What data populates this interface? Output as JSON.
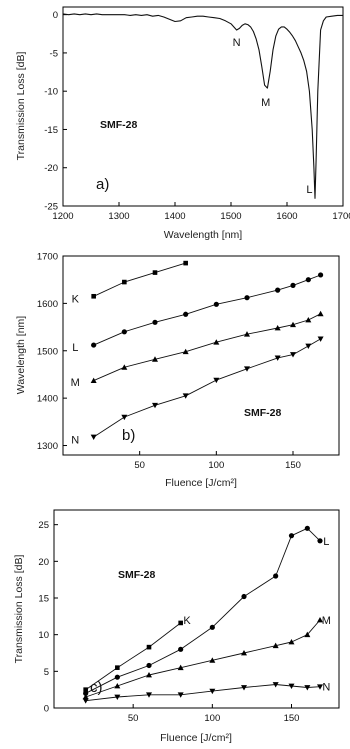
{
  "chart_data": [
    {
      "type": "line",
      "panel_label": "a)",
      "annotation": "SMF-28",
      "xlabel": "Wavelength [nm]",
      "ylabel": "Transmission Loss [dB]",
      "xlim": [
        1200,
        1700
      ],
      "ylim": [
        -25,
        1
      ],
      "xticks": [
        "1200",
        "1300",
        "1400",
        "1500",
        "1600",
        "1700"
      ],
      "yticks": [
        "0",
        "-5",
        "-10",
        "-15",
        "-20",
        "-25"
      ],
      "series": [
        {
          "x": [
            1200,
            1210,
            1220,
            1230,
            1240,
            1250,
            1260,
            1270,
            1280,
            1290,
            1300,
            1310,
            1320,
            1330,
            1340,
            1350,
            1360,
            1370,
            1380,
            1390,
            1400,
            1410,
            1420,
            1430,
            1440,
            1450,
            1460,
            1470,
            1480,
            1490,
            1500,
            1505,
            1510,
            1515,
            1520,
            1525,
            1530,
            1535,
            1540,
            1545,
            1550,
            1555,
            1560,
            1565,
            1570,
            1575,
            1580,
            1585,
            1590,
            1595,
            1600,
            1605,
            1610,
            1615,
            1620,
            1625,
            1630,
            1635,
            1640,
            1645,
            1648,
            1650,
            1652,
            1655,
            1660,
            1665,
            1670,
            1680,
            1690,
            1700
          ],
          "values": [
            0.1,
            0,
            0.1,
            0,
            0.1,
            0,
            0.1,
            0,
            0,
            0,
            0,
            0,
            -0.1,
            0,
            -0.1,
            0,
            -0.2,
            -0.1,
            -0.3,
            -0.6,
            -0.9,
            -0.8,
            -0.4,
            -0.3,
            -0.2,
            -0.2,
            -0.3,
            -0.4,
            -0.5,
            -0.8,
            -1.2,
            -1.6,
            -2.0,
            -1.8,
            -1.4,
            -1.2,
            -1.3,
            -1.6,
            -2.2,
            -3.2,
            -4.6,
            -6.8,
            -9.2,
            -9.6,
            -7.4,
            -4.6,
            -2.8,
            -1.9,
            -1.6,
            -1.6,
            -1.9,
            -2.3,
            -2.8,
            -3.4,
            -4.2,
            -5.0,
            -6.0,
            -7.4,
            -10.0,
            -15.0,
            -20.0,
            -24.0,
            -19.0,
            -10.0,
            -2.0,
            -0.8,
            -0.3,
            -0.2,
            -0.1,
            -0.1
          ]
        }
      ],
      "point_labels": [
        {
          "text": "N",
          "x": 1510,
          "y": -3.6
        },
        {
          "text": "M",
          "x": 1562,
          "y": -11.4
        },
        {
          "text": "L",
          "x": 1640,
          "y": -22.8
        }
      ]
    },
    {
      "type": "line",
      "panel_label": "b)",
      "annotation": "SMF-28",
      "xlabel": "Fluence [J/cm²]",
      "ylabel": "Wavelength [nm]",
      "xlim": [
        0,
        180
      ],
      "ylim": [
        1280,
        1700
      ],
      "xticks": [
        "50",
        "100",
        "150"
      ],
      "xtick_values": [
        50,
        100,
        150
      ],
      "yticks": [
        "1300",
        "1400",
        "1500",
        "1600",
        "1700"
      ],
      "ytick_values": [
        1300,
        1400,
        1500,
        1600,
        1700
      ],
      "series": [
        {
          "name": "K",
          "marker": "square",
          "x": [
            20,
            40,
            60,
            80
          ],
          "values": [
            1615,
            1645,
            1665,
            1685
          ]
        },
        {
          "name": "L",
          "marker": "circle",
          "x": [
            20,
            40,
            60,
            80,
            100,
            120,
            140,
            150,
            160,
            168
          ],
          "values": [
            1512,
            1540,
            1560,
            1577,
            1598,
            1612,
            1628,
            1638,
            1650,
            1660
          ]
        },
        {
          "name": "M",
          "marker": "triangle-up",
          "x": [
            20,
            40,
            60,
            80,
            100,
            120,
            140,
            150,
            160,
            168
          ],
          "values": [
            1437,
            1465,
            1482,
            1498,
            1518,
            1535,
            1548,
            1555,
            1565,
            1578
          ]
        },
        {
          "name": "N",
          "marker": "triangle-down",
          "x": [
            20,
            40,
            60,
            80,
            100,
            120,
            140,
            150,
            160,
            168
          ],
          "values": [
            1318,
            1360,
            1385,
            1405,
            1438,
            1462,
            1485,
            1492,
            1510,
            1525
          ]
        }
      ],
      "series_labels": [
        {
          "text": "K",
          "x": 8,
          "y": 1610
        },
        {
          "text": "L",
          "x": 8,
          "y": 1508
        },
        {
          "text": "M",
          "x": 8,
          "y": 1434
        },
        {
          "text": "N",
          "x": 8,
          "y": 1313
        }
      ]
    },
    {
      "type": "line",
      "panel_label": "c)",
      "annotation": "SMF-28",
      "xlabel": "Fluence [J/cm²]",
      "ylabel": "Transmission Loss [dB]",
      "xlim": [
        0,
        180
      ],
      "ylim": [
        0,
        27
      ],
      "xticks": [
        "50",
        "100",
        "150"
      ],
      "xtick_values": [
        50,
        100,
        150
      ],
      "yticks": [
        "0",
        "5",
        "10",
        "15",
        "20",
        "25"
      ],
      "ytick_values": [
        0,
        5,
        10,
        15,
        20,
        25
      ],
      "series": [
        {
          "name": "K",
          "marker": "square",
          "x": [
            20,
            40,
            60,
            80
          ],
          "values": [
            2.5,
            5.5,
            8.3,
            11.6
          ]
        },
        {
          "name": "L",
          "marker": "circle",
          "x": [
            20,
            40,
            60,
            80,
            100,
            120,
            140,
            150,
            160,
            168
          ],
          "values": [
            2.0,
            4.2,
            5.8,
            8.0,
            11.0,
            15.2,
            18.0,
            23.5,
            24.5,
            22.8
          ]
        },
        {
          "name": "M",
          "marker": "triangle-up",
          "x": [
            20,
            40,
            60,
            80,
            100,
            120,
            140,
            150,
            160,
            168
          ],
          "values": [
            1.5,
            3.0,
            4.5,
            5.5,
            6.5,
            7.5,
            8.5,
            9.0,
            10.0,
            12.0
          ]
        },
        {
          "name": "N",
          "marker": "triangle-down",
          "x": [
            20,
            40,
            60,
            80,
            100,
            120,
            140,
            150,
            160,
            168
          ],
          "values": [
            1.0,
            1.5,
            1.8,
            1.8,
            2.3,
            2.8,
            3.2,
            3.0,
            2.8,
            2.9
          ]
        }
      ],
      "series_labels": [
        {
          "text": "K",
          "x": 84,
          "y": 12.0
        },
        {
          "text": "L",
          "x": 172,
          "y": 22.8
        },
        {
          "text": "M",
          "x": 172,
          "y": 12.0
        },
        {
          "text": "N",
          "x": 172,
          "y": 2.9
        }
      ]
    }
  ]
}
